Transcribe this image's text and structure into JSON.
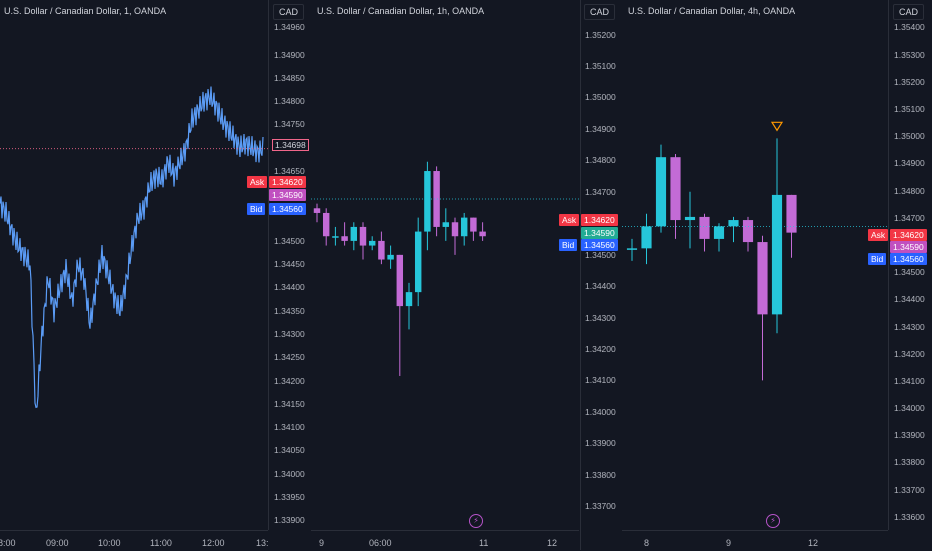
{
  "currency": "CAD",
  "ask_label": "Ask",
  "bid_label": "Bid",
  "chart_data": [
    {
      "type": "line",
      "title": "U.S. Dollar / Canadian Dollar, 1, OANDA",
      "y_ticks": [
        "1.34960",
        "1.34900",
        "1.34850",
        "1.34800",
        "1.34750",
        "1.34650",
        "1.34500",
        "1.34450",
        "1.34400",
        "1.34350",
        "1.34300",
        "1.34250",
        "1.34200",
        "1.34150",
        "1.34100",
        "1.34050",
        "1.34000",
        "1.33950",
        "1.33900"
      ],
      "x_ticks": [
        "8:00",
        "09:00",
        "10:00",
        "11:00",
        "12:00",
        "13:"
      ],
      "ylim": [
        1.3389,
        1.3497
      ],
      "x": [
        0,
        6,
        12,
        18,
        24,
        30,
        36,
        42,
        48,
        54,
        60,
        66,
        72,
        78,
        84,
        90,
        96,
        102,
        108,
        114,
        120,
        126,
        132,
        138,
        144,
        150,
        156,
        162,
        168,
        174,
        180,
        186,
        192,
        198,
        204,
        210,
        216,
        222,
        228,
        234,
        240,
        246,
        252,
        258,
        264
      ],
      "values": [
        1.3458,
        1.3456,
        1.3452,
        1.3449,
        1.3447,
        1.3445,
        1.3412,
        1.343,
        1.3442,
        1.3435,
        1.344,
        1.3444,
        1.3437,
        1.3445,
        1.3442,
        1.3432,
        1.344,
        1.3447,
        1.3443,
        1.3438,
        1.3435,
        1.3441,
        1.3449,
        1.3455,
        1.3457,
        1.3462,
        1.3464,
        1.3463,
        1.3467,
        1.3464,
        1.3467,
        1.347,
        1.3476,
        1.3478,
        1.348,
        1.3481,
        1.3479,
        1.3476,
        1.3474,
        1.3472,
        1.347,
        1.3471,
        1.347,
        1.3469,
        1.347
      ],
      "last_price": "1.34698",
      "ask": "1.34620",
      "mid": "1.34590",
      "bid": "1.34560",
      "series_color": "#5b9cf6"
    },
    {
      "type": "candlestick",
      "title": "U.S. Dollar / Canadian Dollar, 1h, OANDA",
      "x_ticks": [
        "9",
        "06:00",
        "11",
        "12"
      ],
      "candles": [
        {
          "o": 1.3457,
          "h": 1.3458,
          "l": 1.3454,
          "c": 1.3456
        },
        {
          "o": 1.3456,
          "h": 1.3457,
          "l": 1.3449,
          "c": 1.3451
        },
        {
          "o": 1.3451,
          "h": 1.3453,
          "l": 1.3449,
          "c": 1.3451
        },
        {
          "o": 1.3451,
          "h": 1.3454,
          "l": 1.3449,
          "c": 1.345
        },
        {
          "o": 1.345,
          "h": 1.3454,
          "l": 1.3448,
          "c": 1.3453
        },
        {
          "o": 1.3453,
          "h": 1.3454,
          "l": 1.3446,
          "c": 1.3449
        },
        {
          "o": 1.3449,
          "h": 1.3451,
          "l": 1.3448,
          "c": 1.345
        },
        {
          "o": 1.345,
          "h": 1.3452,
          "l": 1.3445,
          "c": 1.3446
        },
        {
          "o": 1.3446,
          "h": 1.3449,
          "l": 1.3444,
          "c": 1.3447
        },
        {
          "o": 1.3447,
          "h": 1.3447,
          "l": 1.3421,
          "c": 1.3436
        },
        {
          "o": 1.3436,
          "h": 1.3441,
          "l": 1.3431,
          "c": 1.3439
        },
        {
          "o": 1.3439,
          "h": 1.3455,
          "l": 1.3436,
          "c": 1.3452
        },
        {
          "o": 1.3452,
          "h": 1.3467,
          "l": 1.3448,
          "c": 1.3465
        },
        {
          "o": 1.3465,
          "h": 1.3466,
          "l": 1.3451,
          "c": 1.3453
        },
        {
          "o": 1.3453,
          "h": 1.3457,
          "l": 1.345,
          "c": 1.3454
        },
        {
          "o": 1.3454,
          "h": 1.3455,
          "l": 1.3447,
          "c": 1.3451
        },
        {
          "o": 1.3451,
          "h": 1.3456,
          "l": 1.3449,
          "c": 1.3455
        },
        {
          "o": 1.3455,
          "h": 1.3455,
          "l": 1.345,
          "c": 1.3452
        },
        {
          "o": 1.3452,
          "h": 1.3454,
          "l": 1.345,
          "c": 1.3451
        }
      ],
      "ylim": [
        1.3389,
        1.3497
      ]
    },
    {
      "type": "candlestick",
      "title": "U.S. Dollar / Canadian Dollar, 4h, OANDA",
      "y_ticks": [
        "1.35200",
        "1.35100",
        "1.35000",
        "1.34900",
        "1.34800",
        "1.34700",
        "1.34500",
        "1.34400",
        "1.34300",
        "1.34200",
        "1.34100",
        "1.34000",
        "1.33900",
        "1.33800",
        "1.33700"
      ],
      "x_ticks": [
        "8",
        "9",
        "12"
      ],
      "candles": [
        {
          "o": 1.3452,
          "h": 1.3455,
          "l": 1.3448,
          "c": 1.3452
        },
        {
          "o": 1.3452,
          "h": 1.3463,
          "l": 1.3447,
          "c": 1.3459
        },
        {
          "o": 1.3459,
          "h": 1.3485,
          "l": 1.3457,
          "c": 1.3481
        },
        {
          "o": 1.3481,
          "h": 1.3482,
          "l": 1.3455,
          "c": 1.3461
        },
        {
          "o": 1.3461,
          "h": 1.347,
          "l": 1.3452,
          "c": 1.3462
        },
        {
          "o": 1.3462,
          "h": 1.3463,
          "l": 1.3451,
          "c": 1.3455
        },
        {
          "o": 1.3455,
          "h": 1.346,
          "l": 1.3451,
          "c": 1.3459
        },
        {
          "o": 1.3459,
          "h": 1.3462,
          "l": 1.3454,
          "c": 1.3461
        },
        {
          "o": 1.3461,
          "h": 1.3462,
          "l": 1.3451,
          "c": 1.3454
        },
        {
          "o": 1.3454,
          "h": 1.3456,
          "l": 1.341,
          "c": 1.3431
        },
        {
          "o": 1.3431,
          "h": 1.3487,
          "l": 1.3425,
          "c": 1.3469
        },
        {
          "o": 1.3469,
          "h": 1.3469,
          "l": 1.3449,
          "c": 1.3457
        }
      ],
      "marker_index": 10,
      "ylim": [
        1.3364,
        1.3524
      ]
    },
    {
      "type": "axis",
      "y_ticks": [
        "1.35400",
        "1.35300",
        "1.35200",
        "1.35100",
        "1.35000",
        "1.34900",
        "1.34800",
        "1.34700",
        "1.34500",
        "1.34400",
        "1.34300",
        "1.34200",
        "1.34100",
        "1.34000",
        "1.33900",
        "1.33800",
        "1.33700",
        "1.33600"
      ],
      "ylim": [
        1.3357,
        1.3542
      ],
      "ask": "1.34620",
      "mid": "1.34590",
      "bid": "1.34560"
    }
  ],
  "colors": {
    "up": "#26c6da",
    "down": "#c36bd6",
    "ask": "#f23645",
    "bid": "#2962ff",
    "grid": "#2a2e39"
  }
}
